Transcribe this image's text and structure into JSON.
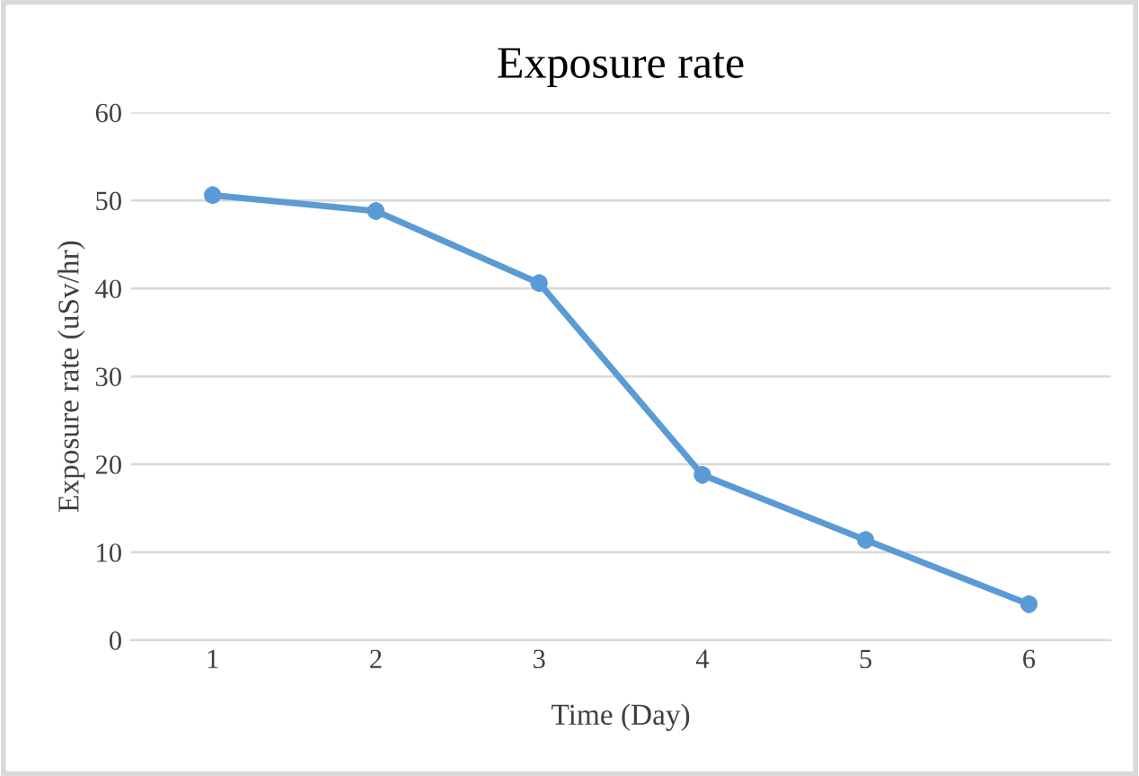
{
  "chart_data": {
    "type": "line",
    "title": "Exposure rate",
    "xlabel": "Time (Day)",
    "ylabel": "Exposure rate (uSv/hr)",
    "categories": [
      "1",
      "2",
      "3",
      "4",
      "5",
      "6"
    ],
    "series": [
      {
        "color": "#5b9bd5",
        "values": [
          50.6,
          48.8,
          40.6,
          18.8,
          11.4,
          4.1
        ],
        "errors": [
          1,
          1,
          1,
          1,
          1,
          1
        ]
      }
    ],
    "ylim": [
      0,
      60
    ],
    "yticks": [
      0,
      10,
      20,
      30,
      40,
      50,
      60
    ],
    "grid": "y",
    "marker": "circle",
    "line_style": "solid",
    "legend": false
  }
}
